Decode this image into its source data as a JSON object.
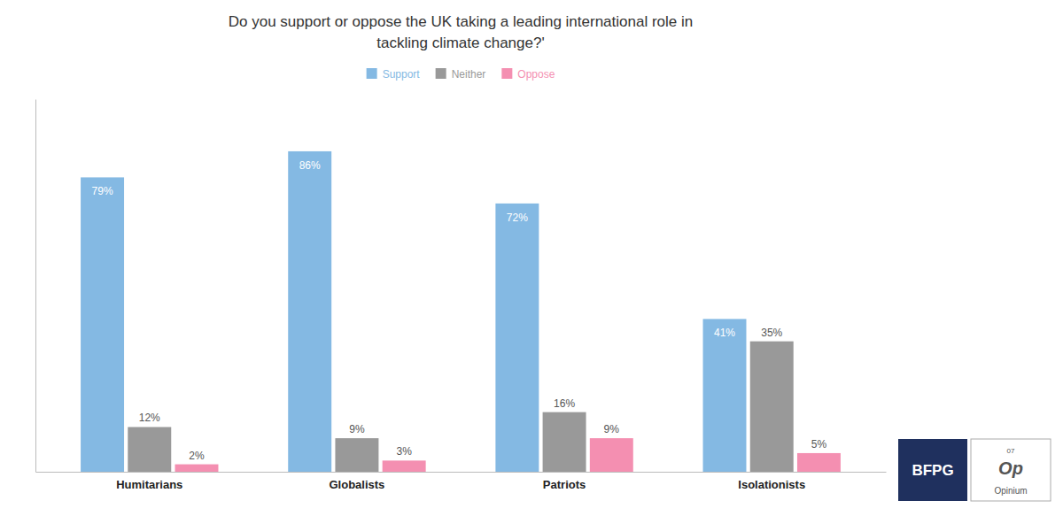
{
  "chart_data": {
    "type": "bar",
    "title": "Do you support or oppose the UK taking a leading international role in\ntackling climate change?'",
    "categories": [
      "Humitarians",
      "Globalists",
      "Patriots",
      "Isolationists"
    ],
    "series": [
      {
        "name": "Support",
        "color": "#84B9E3",
        "values": [
          79,
          86,
          72,
          41
        ],
        "value_labels": [
          "79%",
          "86%",
          "72%",
          "41%"
        ]
      },
      {
        "name": "Neither",
        "color": "#999999",
        "values": [
          12,
          9,
          16,
          35
        ],
        "value_labels": [
          "12%",
          "9%",
          "16%",
          "35%"
        ]
      },
      {
        "name": "Oppose",
        "color": "#F48FB1",
        "values": [
          2,
          3,
          9,
          5
        ],
        "value_labels": [
          "2%",
          "3%",
          "9%",
          "5%"
        ]
      }
    ],
    "ylim": [
      0,
      100
    ],
    "grid": false,
    "legend": "top",
    "data_labels": true,
    "tick_labels": "x",
    "annotations": [
      "BFPG",
      "07",
      "Op",
      "Opinium"
    ]
  }
}
